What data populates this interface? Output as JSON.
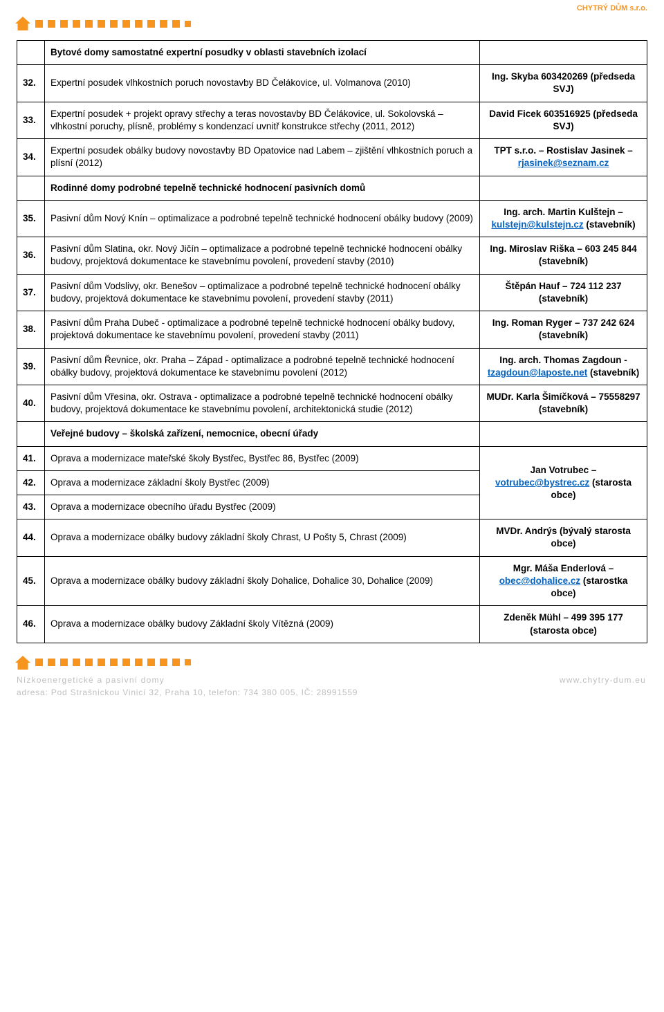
{
  "company": "CHYTRÝ DŮM s.r.o.",
  "colors": {
    "accent": "#f7941d",
    "text": "#000000",
    "link": "#0563c1",
    "footer_grey": "#bfbfbf",
    "border": "#000000",
    "background": "#ffffff"
  },
  "sections": [
    {
      "heading": "Bytové domy samostatné expertní posudky v oblasti stavebních izolací",
      "rows": [
        {
          "num": "32.",
          "desc": "Expertní posudek vlhkostních poruch novostavby BD Čelákovice, ul. Volmanova (2010)",
          "contact_text": "Ing. Skyba 603420269 (předseda SVJ)"
        },
        {
          "num": "33.",
          "desc": "Expertní posudek + projekt opravy střechy a teras novostavby BD Čelákovice, ul. Sokolovská – vlhkostní poruchy, plísně, problémy s kondenzací uvnitř konstrukce střechy (2011, 2012)",
          "contact_text": "David Ficek 603516925 (předseda SVJ)"
        },
        {
          "num": "34.",
          "desc": "Expertní posudek obálky budovy novostavby BD Opatovice nad Labem – zjištění vlhkostních poruch a plísní (2012)",
          "contact_text": "TPT s.r.o. – Rostislav Jasinek – ",
          "contact_link_text": "rjasinek@seznam.cz",
          "contact_link_href": "mailto:rjasinek@seznam.cz"
        }
      ]
    },
    {
      "heading": "Rodinné domy podrobné tepelně technické hodnocení pasivních domů",
      "rows": [
        {
          "num": "35.",
          "desc": "Pasivní dům Nový Knín – optimalizace a podrobné tepelně technické hodnocení obálky budovy (2009)",
          "contact_text": "Ing. arch. Martin Kulštejn – ",
          "contact_link_text": "kulstejn@kulstejn.cz",
          "contact_link_href": "mailto:kulstejn@kulstejn.cz",
          "contact_suffix": " (stavebník)"
        },
        {
          "num": "36.",
          "desc": "Pasivní dům Slatina, okr. Nový Jičín – optimalizace a podrobné tepelně technické hodnocení obálky budovy, projektová dokumentace ke stavebnímu povolení, provedení stavby (2010)",
          "contact_text": "Ing. Miroslav Riška – 603 245 844 (stavebník)"
        },
        {
          "num": "37.",
          "desc": "Pasivní dům Vodslivy, okr. Benešov – optimalizace a podrobné tepelně technické hodnocení obálky budovy, projektová dokumentace ke stavebnímu povolení, provedení stavby (2011)",
          "contact_text": "Štěpán Hauf – 724 112 237 (stavebník)"
        },
        {
          "num": "38.",
          "desc": "Pasivní dům Praha Dubeč - optimalizace a podrobné tepelně technické hodnocení obálky budovy, projektová dokumentace ke stavebnímu povolení, provedení stavby (2011)",
          "contact_text": "Ing. Roman Ryger – 737 242 624 (stavebník)"
        },
        {
          "num": "39.",
          "desc": "Pasivní dům Řevnice, okr. Praha – Západ - optimalizace a podrobné tepelně technické hodnocení obálky budovy, projektová dokumentace ke stavebnímu povolení (2012)",
          "contact_text": "Ing. arch. Thomas Zagdoun - ",
          "contact_link_text": "tzagdoun@laposte.net",
          "contact_link_href": "mailto:tzagdoun@laposte.net",
          "contact_suffix": " (stavebník)"
        },
        {
          "num": "40.",
          "desc": "Pasivní dům Vřesina, okr. Ostrava - optimalizace a podrobné tepelně technické hodnocení obálky budovy, projektová dokumentace ke stavebnímu povolení, architektonická studie (2012)",
          "contact_text": "MUDr. Karla Šimíčková – 75558297 (stavebník)"
        }
      ]
    },
    {
      "heading": "Veřejné budovy – školská zařízení, nemocnice, obecní úřady",
      "rows": [
        {
          "num": "41.",
          "desc": "Oprava a modernizace mateřské školy Bystřec, Bystřec 86, Bystřec (2009)",
          "contact_text": "Jan Votrubec – ",
          "contact_link_text": "votrubec@bystrec.cz",
          "contact_link_href": "mailto:votrubec@bystrec.cz",
          "contact_suffix": " (starosta obce)",
          "contact_rowspan": 3
        },
        {
          "num": "42.",
          "desc": "Oprava a modernizace základní školy Bystřec (2009)"
        },
        {
          "num": "43.",
          "desc": "Oprava a modernizace obecního úřadu Bystřec (2009)"
        },
        {
          "num": "44.",
          "desc": "Oprava a modernizace obálky budovy základní školy Chrast, U Pošty 5, Chrast (2009)",
          "contact_text": "MVDr. Andrýs (bývalý starosta obce)"
        },
        {
          "num": "45.",
          "desc": "Oprava a modernizace obálky budovy základní školy Dohalice, Dohalice 30, Dohalice (2009)",
          "contact_text": "Mgr. Máša Enderlová – ",
          "contact_link_text": "obec@dohalice.cz",
          "contact_link_href": "mailto:obec@dohalice.cz",
          "contact_suffix": " (starostka obce)"
        },
        {
          "num": "46.",
          "desc": "Oprava a modernizace obálky budovy Základní školy Vítězná (2009)",
          "contact_text": "Zdeněk Mühl – 499 395 177 (starosta obce)"
        }
      ]
    }
  ],
  "footer": {
    "line1_left": "Nízkoenergetické a pasivní domy",
    "line1_right": "www.chytry-dum.eu",
    "line2": "adresa: Pod Strašnickou Vinicí 32, Praha 10, telefon: 734 380 005, IČ: 28991559"
  }
}
